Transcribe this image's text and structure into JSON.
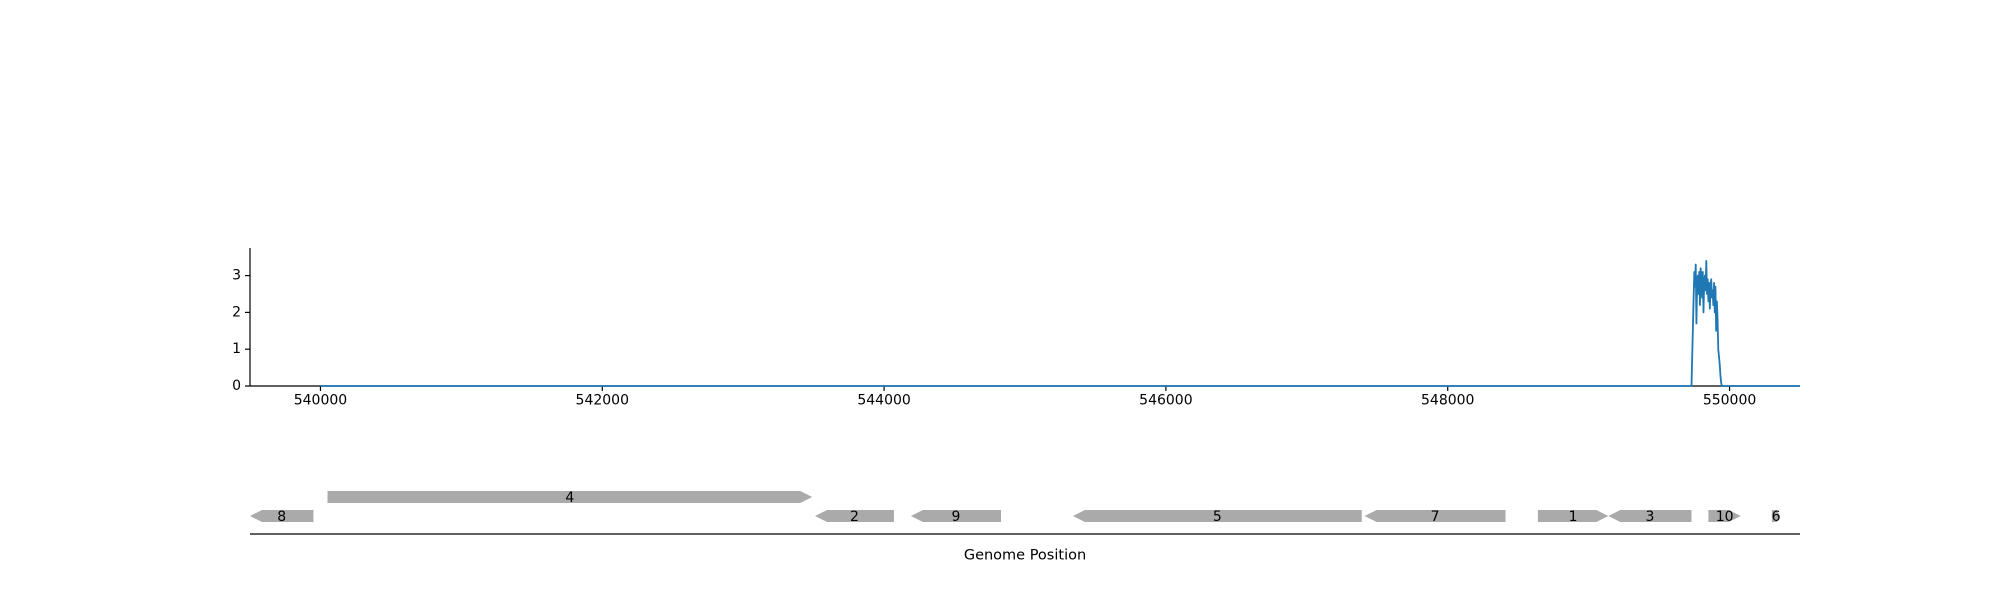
{
  "chart_data": [
    {
      "type": "line",
      "name": "coverage-track",
      "xlim": [
        539500,
        550500
      ],
      "ylim": [
        0,
        3.75
      ],
      "xticks": [
        540000,
        542000,
        544000,
        546000,
        548000,
        550000
      ],
      "xtick_labels": [
        "540000",
        "542000",
        "544000",
        "546000",
        "548000",
        "550000"
      ],
      "yticks": [
        0,
        1,
        2,
        3
      ],
      "ytick_labels": [
        "0",
        "1",
        "2",
        "3"
      ],
      "line_color": "#1f77b4",
      "grid": false,
      "series": [
        {
          "x": [
            540000,
            549730,
            549745,
            549750,
            549755,
            549760,
            549765,
            549770,
            549775,
            549780,
            549785,
            549790,
            549795,
            549800,
            549805,
            549810,
            549815,
            549820,
            549825,
            549830,
            549835,
            549840,
            549845,
            549850,
            549855,
            549860,
            549865,
            549870,
            549875,
            549880,
            549885,
            549890,
            549895,
            549900,
            549905,
            549910,
            549915,
            549920,
            549925,
            549930,
            549935,
            549940,
            549945,
            549950,
            549955,
            549960,
            550500
          ],
          "y": [
            0,
            0,
            2.4,
            3.1,
            2.7,
            3.3,
            1.7,
            2.8,
            3.0,
            2.5,
            3.1,
            2.2,
            3.2,
            2.9,
            2.4,
            3.1,
            2.0,
            2.8,
            3.0,
            2.6,
            3.4,
            2.5,
            2.9,
            2.3,
            2.8,
            2.1,
            2.7,
            2.9,
            2.4,
            2.6,
            2.2,
            2.8,
            2.0,
            2.7,
            1.5,
            2.3,
            1.8,
            1.0,
            0.8,
            0.6,
            0.3,
            0.1,
            0,
            0,
            0,
            0,
            0
          ]
        }
      ]
    },
    {
      "type": "gene-track",
      "xlim": [
        539500,
        550500
      ],
      "xlabel": "Genome Position",
      "fill_color": "#aaaaaa",
      "genes": [
        {
          "label": "8",
          "start": 539500,
          "end": 539950,
          "strand": "-",
          "row": 0
        },
        {
          "label": "4",
          "start": 540050,
          "end": 543490,
          "strand": "+",
          "row": 1
        },
        {
          "label": "2",
          "start": 543510,
          "end": 544070,
          "strand": "-",
          "row": 0
        },
        {
          "label": "9",
          "start": 544190,
          "end": 544830,
          "strand": "-",
          "row": 0
        },
        {
          "label": "5",
          "start": 545340,
          "end": 547390,
          "strand": "-",
          "row": 0
        },
        {
          "label": "7",
          "start": 547410,
          "end": 548410,
          "strand": "-",
          "row": 0
        },
        {
          "label": "1",
          "start": 548640,
          "end": 549140,
          "strand": "+",
          "row": 0
        },
        {
          "label": "3",
          "start": 549140,
          "end": 549730,
          "strand": "-",
          "row": 0
        },
        {
          "label": "10",
          "start": 549850,
          "end": 550080,
          "strand": "+",
          "row": 0
        },
        {
          "label": "6",
          "start": 550300,
          "end": 550360,
          "strand": "+",
          "row": 0
        }
      ]
    }
  ]
}
